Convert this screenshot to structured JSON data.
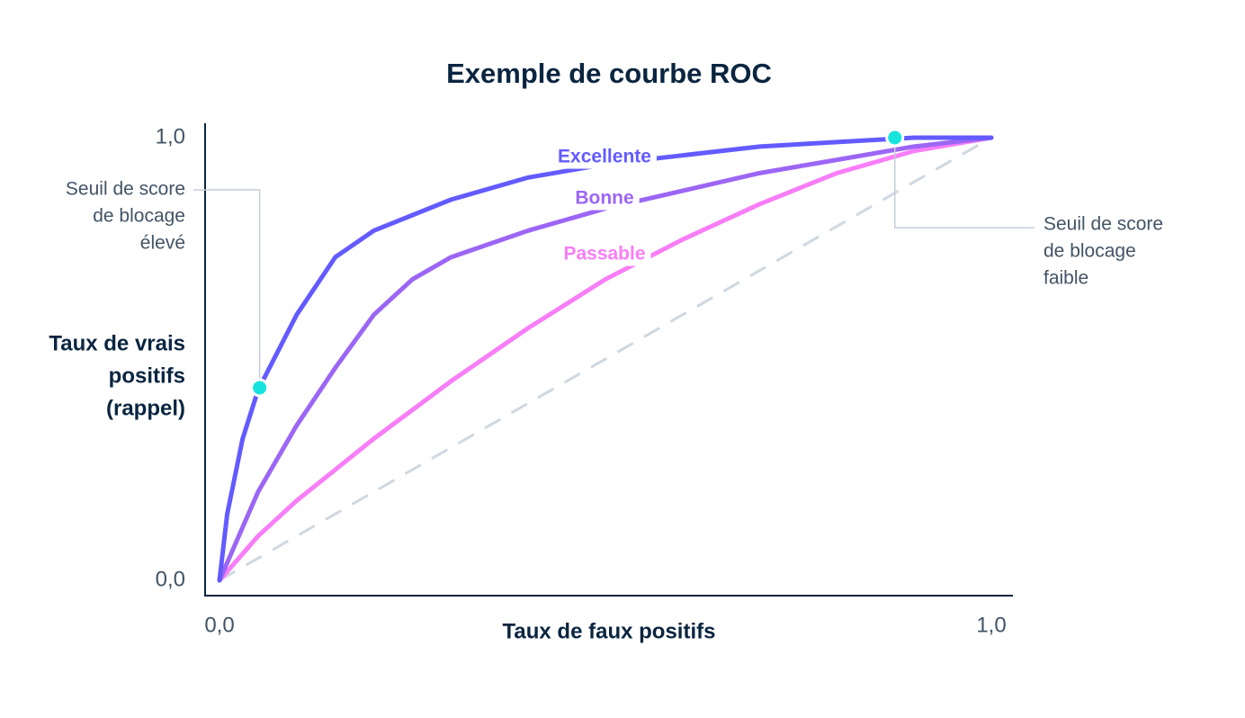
{
  "chart_data": {
    "type": "line",
    "title": "Exemple de courbe ROC",
    "x_label": "Taux de faux positifs",
    "y_label": [
      "Taux de vrais",
      "positifs",
      "(rappel)"
    ],
    "xlim": [
      0,
      1
    ],
    "ylim": [
      0,
      1
    ],
    "xticks": [
      {
        "value": 0,
        "label": "0,0"
      },
      {
        "value": 1,
        "label": "1,0"
      }
    ],
    "yticks": [
      {
        "value": 0,
        "label": "0,0"
      },
      {
        "value": 1,
        "label": "1,0"
      }
    ],
    "series": [
      {
        "name": "Excellente",
        "color": "#635bff",
        "x": [
          0,
          0.01,
          0.03,
          0.05,
          0.1,
          0.15,
          0.2,
          0.3,
          0.4,
          0.5,
          0.6,
          0.7,
          0.8,
          0.9,
          1.0
        ],
        "values": [
          0,
          0.15,
          0.32,
          0.43,
          0.6,
          0.73,
          0.79,
          0.86,
          0.91,
          0.94,
          0.96,
          0.98,
          0.99,
          1.0,
          1.0
        ]
      },
      {
        "name": "Bonne",
        "color": "#9c66f5",
        "x": [
          0,
          0.05,
          0.1,
          0.15,
          0.2,
          0.25,
          0.3,
          0.4,
          0.5,
          0.6,
          0.7,
          0.8,
          0.9,
          1.0
        ],
        "values": [
          0,
          0.2,
          0.35,
          0.48,
          0.6,
          0.68,
          0.73,
          0.79,
          0.84,
          0.88,
          0.92,
          0.95,
          0.98,
          1.0
        ]
      },
      {
        "name": "Passable",
        "color": "#f77ef7",
        "x": [
          0,
          0.05,
          0.1,
          0.2,
          0.3,
          0.4,
          0.5,
          0.6,
          0.7,
          0.8,
          0.9,
          1.0
        ],
        "values": [
          0,
          0.1,
          0.18,
          0.32,
          0.45,
          0.57,
          0.68,
          0.77,
          0.85,
          0.92,
          0.97,
          1.0
        ]
      }
    ],
    "diagonal": {
      "x": [
        0,
        1
      ],
      "values": [
        0,
        1
      ],
      "color": "#cfd8e0"
    },
    "points": [
      {
        "x": 0.052,
        "y": 0.435,
        "label": [
          "Seuil de score",
          "de blocage",
          "élevé"
        ]
      },
      {
        "x": 0.875,
        "y": 1.0,
        "label": [
          "Seuil de score",
          "de blocage",
          "faible"
        ]
      }
    ],
    "point_color": "#18e3dd"
  }
}
